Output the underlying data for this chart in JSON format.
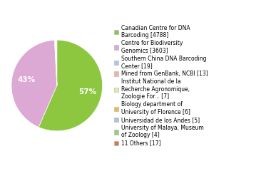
{
  "labels": [
    "Canadian Centre for DNA\nBarcoding [4788]",
    "Centre for Biodiversity\nGenomics [3603]",
    "Southern China DNA Barcoding\nCenter [19]",
    "Mined from GenBank, NCBI [13]",
    "Institut National de la\nRecherche Agronomique,\nZoologie For... [7]",
    "Biology department of\nUniversity of Florence [6]",
    "Universidad de los Andes [5]",
    "University of Malaya, Museum\nof Zoology [4]",
    "11 Others [17]"
  ],
  "values": [
    4788,
    3603,
    19,
    13,
    7,
    6,
    5,
    4,
    17
  ],
  "colors": [
    "#8dc63f",
    "#dca8d4",
    "#aec6e8",
    "#f2b49a",
    "#e8e8a0",
    "#f5b942",
    "#a8c4e0",
    "#a0c878",
    "#e07050"
  ],
  "pct_threshold": 2.0,
  "figsize": [
    3.8,
    2.4
  ],
  "dpi": 100
}
